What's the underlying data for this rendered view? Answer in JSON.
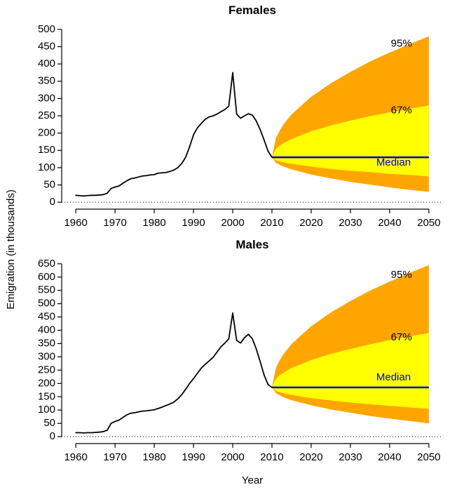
{
  "figure": {
    "ylabel": "Emigration (in thousands)",
    "xlabel": "Year"
  },
  "chart_data": [
    {
      "type": "line",
      "title": "Females",
      "xlabel": "Year",
      "ylabel": "Emigration (in thousands)",
      "xlim": [
        1960,
        2050
      ],
      "ylim": [
        0,
        500
      ],
      "xticks": [
        1960,
        1970,
        1980,
        1990,
        2000,
        2010,
        2020,
        2030,
        2040,
        2050
      ],
      "yticks": [
        0,
        50,
        100,
        150,
        200,
        250,
        300,
        350,
        400,
        450,
        500
      ],
      "grid": false,
      "historical": {
        "name": "observed-emigration",
        "start_year": 1960,
        "y": [
          20,
          19,
          18,
          19,
          20,
          20,
          21,
          22,
          26,
          40,
          44,
          47,
          55,
          62,
          68,
          70,
          73,
          76,
          77,
          79,
          80,
          84,
          85,
          86,
          89,
          93,
          100,
          112,
          130,
          160,
          195,
          215,
          228,
          240,
          247,
          250,
          255,
          262,
          268,
          278,
          375,
          255,
          243,
          250,
          256,
          252,
          235,
          210,
          180,
          148,
          130
        ]
      },
      "projection": {
        "x": [
          2010,
          2011,
          2012,
          2013,
          2015,
          2020,
          2025,
          2030,
          2035,
          2040,
          2045,
          2050
        ],
        "median": 130,
        "band95": {
          "upper": [
            130,
            185,
            208,
            226,
            254,
            305,
            344,
            377,
            407,
            433,
            457,
            480
          ],
          "lower": [
            130,
            114,
            108,
            103,
            95,
            80,
            69,
            59,
            51,
            43,
            36,
            30
          ]
        },
        "band67": {
          "upper": [
            130,
            154,
            164,
            171,
            183,
            205,
            222,
            236,
            249,
            260,
            270,
            280
          ],
          "lower": [
            130,
            121,
            118,
            115,
            111,
            103,
            96,
            91,
            87,
            82,
            79,
            75
          ]
        }
      },
      "annotations": [
        {
          "text": "95%",
          "x": 2043,
          "y": 450,
          "color": "#000000"
        },
        {
          "text": "67%",
          "x": 2043,
          "y": 257,
          "color": "#000000"
        },
        {
          "text": "Median",
          "x": 2041,
          "y": 106,
          "color": "#0000CD"
        }
      ],
      "colors": {
        "historical": "#000000",
        "median": "#0000CD",
        "band95": "#FFA500",
        "band67": "#FFFF00"
      }
    },
    {
      "type": "line",
      "title": "Males",
      "xlabel": "Year",
      "ylabel": "Emigration (in thousands)",
      "xlim": [
        1960,
        2050
      ],
      "ylim": [
        0,
        650
      ],
      "xticks": [
        1960,
        1970,
        1980,
        1990,
        2000,
        2010,
        2020,
        2030,
        2040,
        2050
      ],
      "yticks": [
        0,
        50,
        100,
        150,
        200,
        250,
        300,
        350,
        400,
        450,
        500,
        550,
        600,
        650
      ],
      "grid": false,
      "historical": {
        "name": "observed-emigration",
        "start_year": 1960,
        "y": [
          15,
          15,
          14,
          15,
          15,
          16,
          17,
          19,
          24,
          50,
          57,
          62,
          72,
          82,
          88,
          90,
          93,
          96,
          97,
          99,
          101,
          106,
          111,
          117,
          123,
          130,
          142,
          158,
          178,
          200,
          218,
          238,
          258,
          272,
          285,
          298,
          318,
          338,
          352,
          368,
          465,
          362,
          352,
          372,
          385,
          368,
          330,
          282,
          232,
          196,
          185
        ]
      },
      "projection": {
        "x": [
          2010,
          2011,
          2012,
          2013,
          2015,
          2020,
          2025,
          2030,
          2035,
          2040,
          2045,
          2050
        ],
        "median": 185,
        "band95": {
          "upper": [
            185,
            258,
            288,
            311,
            348,
            415,
            467,
            510,
            549,
            583,
            615,
            645
          ],
          "lower": [
            185,
            164,
            155,
            148,
            137,
            118,
            102,
            90,
            78,
            68,
            59,
            50
          ]
        },
        "band67": {
          "upper": [
            185,
            217,
            231,
            241,
            258,
            288,
            311,
            330,
            347,
            363,
            377,
            390
          ],
          "lower": [
            185,
            172,
            167,
            163,
            157,
            145,
            136,
            128,
            122,
            116,
            110,
            105
          ]
        }
      },
      "annotations": [
        {
          "text": "95%",
          "x": 2043,
          "y": 597,
          "color": "#000000"
        },
        {
          "text": "67%",
          "x": 2043,
          "y": 362,
          "color": "#000000"
        },
        {
          "text": "Median",
          "x": 2041,
          "y": 212,
          "color": "#0000CD"
        }
      ],
      "colors": {
        "historical": "#000000",
        "median": "#0000CD",
        "band95": "#FFA500",
        "band67": "#FFFF00"
      }
    }
  ]
}
